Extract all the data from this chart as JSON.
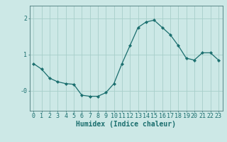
{
  "x": [
    0,
    1,
    2,
    3,
    4,
    5,
    6,
    7,
    8,
    9,
    10,
    11,
    12,
    13,
    14,
    15,
    16,
    17,
    18,
    19,
    20,
    21,
    22,
    23
  ],
  "y": [
    0.75,
    0.6,
    0.35,
    0.25,
    0.2,
    0.18,
    -0.12,
    -0.15,
    -0.15,
    -0.05,
    0.2,
    0.75,
    1.25,
    1.75,
    1.9,
    1.95,
    1.75,
    1.55,
    1.25,
    0.9,
    0.85,
    1.05,
    1.05,
    0.85
  ],
  "line_color": "#1a6e6e",
  "marker": "D",
  "marker_size": 2.2,
  "bg_color": "#cce8e6",
  "grid_color": "#a8ceca",
  "axis_color": "#4a7a7a",
  "xlabel": "Humidex (Indice chaleur)",
  "xlabel_fontsize": 7,
  "tick_fontsize": 6,
  "ytick_values": [
    0,
    1,
    2
  ],
  "ytick_labels": [
    "-0",
    "1",
    "2"
  ],
  "ylim": [
    -0.55,
    2.35
  ],
  "xlim": [
    -0.5,
    23.5
  ],
  "xticks": [
    0,
    1,
    2,
    3,
    4,
    5,
    6,
    7,
    8,
    9,
    10,
    11,
    12,
    13,
    14,
    15,
    16,
    17,
    18,
    19,
    20,
    21,
    22,
    23
  ]
}
